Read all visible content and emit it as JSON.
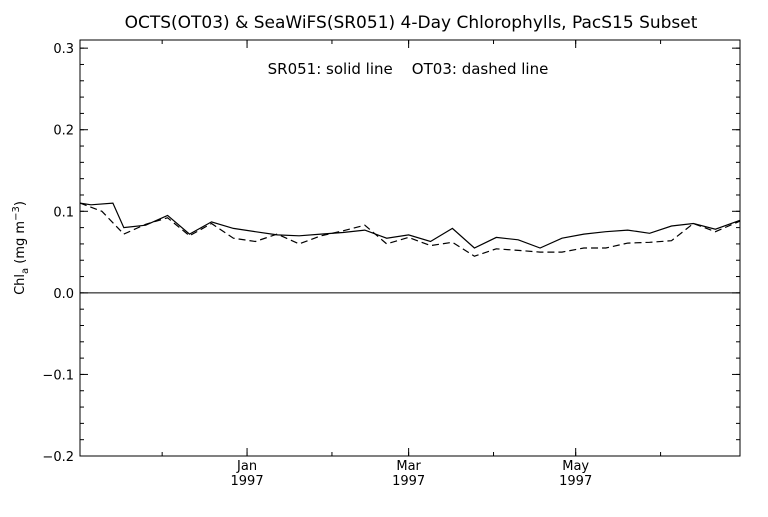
{
  "chart_data": {
    "type": "line",
    "title": "OCTS(OT03) & SeaWiFS(SR051) 4-Day Chlorophylls, PacS15 Subset",
    "legend_note": "SR051: solid line    OT03: dashed line",
    "ylabel": {
      "main": "Chl",
      "sub": "a",
      "unit_open": " (mg m",
      "unit_sup": "−3",
      "unit_close": ")"
    },
    "ylim": [
      -0.2,
      0.31
    ],
    "y_ticks": [
      {
        "value": 0.3,
        "label": "0.3"
      },
      {
        "value": 0.2,
        "label": "0.2"
      },
      {
        "value": 0.1,
        "label": "0.1"
      },
      {
        "value": 0.0,
        "label": "0.0"
      },
      {
        "value": -0.1,
        "label": "−0.1"
      },
      {
        "value": -0.2,
        "label": "−0.2"
      }
    ],
    "x_range": [
      "1996-11-01",
      "1997-06-30"
    ],
    "x_ticks": [
      {
        "date": "1997-01-01",
        "month": "Jan",
        "year": "1997"
      },
      {
        "date": "1997-03-01",
        "month": "Mar",
        "year": "1997"
      },
      {
        "date": "1997-05-01",
        "month": "May",
        "year": "1997"
      }
    ],
    "zero_line": 0.0,
    "grid": false,
    "series": [
      {
        "name": "SR051",
        "style": "solid",
        "color": "#000000",
        "x": [
          "1996-11-01",
          "1996-11-05",
          "1996-11-13",
          "1996-11-17",
          "1996-11-25",
          "1996-12-03",
          "1996-12-11",
          "1996-12-19",
          "1996-12-27",
          "1997-01-04",
          "1997-01-12",
          "1997-01-20",
          "1997-01-28",
          "1997-02-05",
          "1997-02-13",
          "1997-02-21",
          "1997-03-01",
          "1997-03-09",
          "1997-03-17",
          "1997-03-25",
          "1997-04-02",
          "1997-04-10",
          "1997-04-18",
          "1997-04-26",
          "1997-05-04",
          "1997-05-12",
          "1997-05-20",
          "1997-05-28",
          "1997-06-05",
          "1997-06-13",
          "1997-06-21",
          "1997-06-30"
        ],
        "values": [
          0.11,
          0.108,
          0.11,
          0.08,
          0.083,
          0.095,
          0.072,
          0.087,
          0.079,
          0.075,
          0.071,
          0.07,
          0.072,
          0.074,
          0.077,
          0.067,
          0.071,
          0.063,
          0.079,
          0.055,
          0.068,
          0.065,
          0.055,
          0.067,
          0.072,
          0.075,
          0.077,
          0.073,
          0.082,
          0.085,
          0.078,
          0.089
        ]
      },
      {
        "name": "OT03",
        "style": "dashed",
        "color": "#000000",
        "x": [
          "1996-11-01",
          "1996-11-09",
          "1996-11-17",
          "1996-11-25",
          "1996-12-03",
          "1996-12-11",
          "1996-12-19",
          "1996-12-27",
          "1997-01-04",
          "1997-01-12",
          "1997-01-20",
          "1997-01-28",
          "1997-02-05",
          "1997-02-13",
          "1997-02-21",
          "1997-03-01",
          "1997-03-09",
          "1997-03-17",
          "1997-03-25",
          "1997-04-02",
          "1997-04-10",
          "1997-04-18",
          "1997-04-26",
          "1997-05-04",
          "1997-05-12",
          "1997-05-20",
          "1997-05-28",
          "1997-06-05",
          "1997-06-13",
          "1997-06-21",
          "1997-06-30"
        ],
        "values": [
          0.11,
          0.1,
          0.072,
          0.084,
          0.092,
          0.07,
          0.085,
          0.067,
          0.063,
          0.072,
          0.06,
          0.07,
          0.076,
          0.083,
          0.06,
          0.068,
          0.058,
          0.062,
          0.045,
          0.054,
          0.052,
          0.05,
          0.05,
          0.055,
          0.055,
          0.061,
          0.062,
          0.064,
          0.085,
          0.075,
          0.088
        ]
      }
    ]
  }
}
